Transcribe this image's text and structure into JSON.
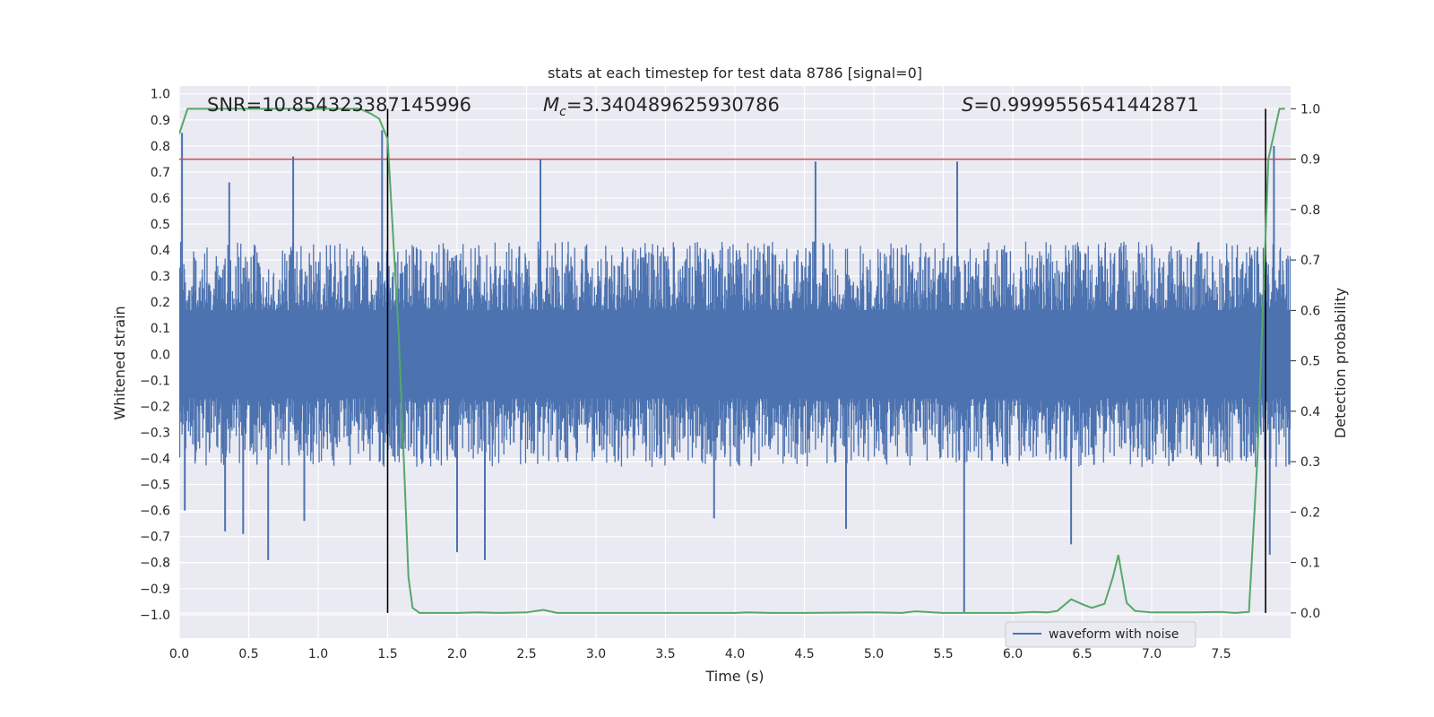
{
  "chart_data": {
    "type": "line",
    "title": "stats at each timestep for test data 8786 [signal=0]",
    "xlabel": "Time (s)",
    "ylabel": "Whitened strain",
    "y2label": "Detection probability",
    "xlim": [
      0.0,
      8.0
    ],
    "ylim": [
      -1.09,
      1.03
    ],
    "y2lim": [
      -0.05,
      1.045
    ],
    "x_ticks": [
      0.0,
      0.5,
      1.0,
      1.5,
      2.0,
      2.5,
      3.0,
      3.5,
      4.0,
      4.5,
      5.0,
      5.5,
      6.0,
      6.5,
      7.0,
      7.5
    ],
    "y_ticks": [
      1.0,
      0.9,
      0.8,
      0.7,
      0.6,
      0.5,
      0.4,
      0.3,
      0.2,
      0.1,
      0.0,
      -0.1,
      -0.2,
      -0.3,
      -0.4,
      -0.5,
      -0.6,
      -0.7,
      -0.8,
      -0.9,
      -1.0
    ],
    "y2_ticks": [
      1.0,
      0.9,
      0.8,
      0.7,
      0.6,
      0.5,
      0.4,
      0.3,
      0.2,
      0.1,
      0.0
    ],
    "grid": true,
    "legend": {
      "position": "lower-right",
      "entries": [
        "waveform with noise"
      ]
    },
    "annotations": {
      "snr": "SNR=10.854323387145996",
      "mc_symbol": "M",
      "mc_sub": "c",
      "mc_value": "=3.340489625930786",
      "s_symbol": "S",
      "s_value": "=0.9999556541442871"
    },
    "threshold": 0.9,
    "vertical_lines": [
      1.5,
      7.82
    ],
    "series": [
      {
        "name": "waveform with noise",
        "axis": "left",
        "color": "#4c72b0",
        "envelope_times": [
          0.0,
          0.5,
          1.0,
          1.5,
          2.0,
          2.5,
          3.0,
          3.5,
          4.0,
          4.5,
          5.0,
          5.5,
          6.0,
          6.5,
          7.0,
          7.5,
          8.0
        ],
        "typical_upper": [
          0.42,
          0.42,
          0.42,
          0.4,
          0.42,
          0.42,
          0.42,
          0.42,
          0.42,
          0.42,
          0.42,
          0.42,
          0.42,
          0.42,
          0.42,
          0.42,
          0.42
        ],
        "typical_lower": [
          -0.42,
          -0.42,
          -0.42,
          -0.42,
          -0.42,
          -0.42,
          -0.42,
          -0.42,
          -0.42,
          -0.42,
          -0.42,
          -0.42,
          -0.42,
          -0.42,
          -0.42,
          -0.42,
          -0.42
        ],
        "peaks": [
          {
            "x": 0.02,
            "y": 0.85
          },
          {
            "x": 0.04,
            "y": -0.6
          },
          {
            "x": 0.36,
            "y": 0.66
          },
          {
            "x": 0.33,
            "y": -0.68
          },
          {
            "x": 0.46,
            "y": -0.69
          },
          {
            "x": 0.64,
            "y": -0.79
          },
          {
            "x": 0.82,
            "y": 0.76
          },
          {
            "x": 0.9,
            "y": -0.64
          },
          {
            "x": 1.46,
            "y": 0.86
          },
          {
            "x": 2.0,
            "y": -0.76
          },
          {
            "x": 2.2,
            "y": -0.79
          },
          {
            "x": 2.6,
            "y": 0.75
          },
          {
            "x": 3.85,
            "y": -0.63
          },
          {
            "x": 4.58,
            "y": 0.74
          },
          {
            "x": 4.8,
            "y": -0.67
          },
          {
            "x": 5.6,
            "y": 0.74
          },
          {
            "x": 5.65,
            "y": -0.99
          },
          {
            "x": 6.42,
            "y": -0.73
          },
          {
            "x": 7.85,
            "y": -0.77
          },
          {
            "x": 7.88,
            "y": 0.8
          }
        ]
      },
      {
        "name": "",
        "axis": "right",
        "color": "#55a868",
        "x": [
          0.0,
          0.06,
          0.2,
          0.5,
          1.0,
          1.3,
          1.38,
          1.44,
          1.5,
          1.58,
          1.62,
          1.65,
          1.68,
          1.73,
          1.8,
          1.9,
          2.0,
          2.15,
          2.3,
          2.5,
          2.62,
          2.72,
          3.0,
          3.5,
          4.0,
          4.1,
          4.25,
          4.5,
          5.0,
          5.2,
          5.3,
          5.5,
          6.0,
          6.15,
          6.25,
          6.32,
          6.42,
          6.52,
          6.57,
          6.66,
          6.72,
          6.76,
          6.82,
          6.88,
          7.0,
          7.3,
          7.5,
          7.6,
          7.7,
          7.76,
          7.84,
          7.92,
          7.96
        ],
        "y": [
          0.95,
          1.0,
          1.0,
          1.0,
          1.0,
          1.0,
          0.99,
          0.98,
          0.94,
          0.55,
          0.28,
          0.07,
          0.01,
          0.0,
          0.0,
          0.0,
          0.0,
          0.001,
          0.0,
          0.001,
          0.006,
          0.0,
          0.0,
          0.0,
          0.0,
          0.001,
          0.0,
          0.0,
          0.001,
          0.0,
          0.003,
          0.0,
          0.0,
          0.002,
          0.001,
          0.004,
          0.027,
          0.015,
          0.01,
          0.018,
          0.07,
          0.115,
          0.02,
          0.004,
          0.001,
          0.001,
          0.002,
          0.0,
          0.002,
          0.3,
          0.9,
          1.0,
          1.0
        ]
      }
    ]
  }
}
